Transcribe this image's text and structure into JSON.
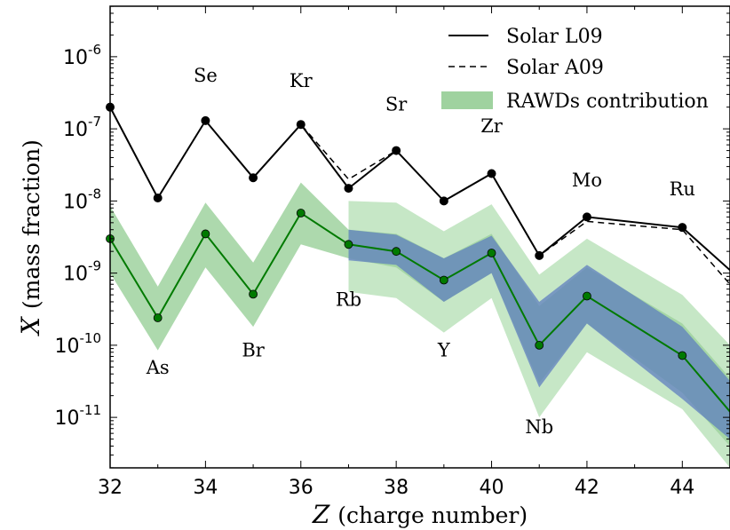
{
  "chart_data": {
    "type": "line",
    "xlabel_var": "Z",
    "xlabel_rest": "(charge number)",
    "ylabel_var": "X",
    "ylabel_rest": "(mass fraction)",
    "xlim": [
      32,
      45
    ],
    "ylim_log10": [
      -11.7,
      -5.3
    ],
    "y_scale": "log",
    "x_ticks": [
      32,
      34,
      36,
      38,
      40,
      42,
      44
    ],
    "y_ticks": [
      {
        "base": "10",
        "exp": "-6",
        "value": 1e-06
      },
      {
        "base": "10",
        "exp": "-7",
        "value": 1e-07
      },
      {
        "base": "10",
        "exp": "-8",
        "value": 1e-08
      },
      {
        "base": "10",
        "exp": "-9",
        "value": 1e-09
      },
      {
        "base": "10",
        "exp": "-10",
        "value": 1e-10
      },
      {
        "base": "10",
        "exp": "-11",
        "value": 1e-11
      }
    ],
    "legend": {
      "placement": "top-right",
      "entries": [
        "Solar L09",
        "Solar A09",
        "RAWDs contribution"
      ]
    },
    "colors": {
      "solar": "#000000",
      "rawds_line": "#007a00",
      "rawds_band": "#9fd29f",
      "outer_band": "#c6e7c6",
      "blue_band": "#5f7fbf"
    },
    "series": [
      {
        "name": "Solar L09",
        "x": [
          32,
          33,
          34,
          35,
          36,
          37,
          38,
          39,
          40,
          41,
          42,
          44,
          45
        ],
        "y": [
          2e-07,
          1.1e-08,
          1.3e-07,
          2.1e-08,
          1.15e-07,
          1.5e-08,
          5e-08,
          1e-08,
          2.4e-08,
          1.75e-09,
          6e-09,
          4.3e-09,
          1.1e-09
        ]
      },
      {
        "name": "Solar A09",
        "x": [
          32,
          33,
          34,
          35,
          36,
          37,
          38,
          39,
          40,
          41,
          42,
          44,
          45
        ],
        "y": [
          2e-07,
          1.1e-08,
          1.3e-07,
          2.1e-08,
          1.15e-07,
          2e-08,
          5e-08,
          1e-08,
          2.4e-08,
          1.75e-09,
          5.2e-09,
          4e-09,
          7e-10
        ]
      },
      {
        "name": "RAWDs contribution",
        "x": [
          32,
          33,
          34,
          35,
          36,
          37,
          38,
          39,
          40,
          41,
          42,
          44,
          45
        ],
        "y": [
          3e-09,
          2.4e-10,
          3.5e-09,
          5.1e-10,
          6.8e-09,
          2.5e-09,
          2e-09,
          8e-10,
          1.9e-09,
          1e-10,
          4.8e-10,
          7.2e-11,
          1.2e-11
        ],
        "band_low": [
          1e-09,
          8.5e-11,
          1.2e-09,
          1.8e-10,
          2.5e-09,
          1.6e-09,
          1.2e-09,
          4e-10,
          1e-09,
          3e-11,
          2e-10,
          2.2e-11,
          4e-12
        ],
        "band_high": [
          8.5e-09,
          6.5e-10,
          9.5e-09,
          1.4e-09,
          1.8e-08,
          4e-09,
          3.5e-09,
          1.6e-09,
          3.5e-09,
          3.5e-10,
          1.2e-09,
          2e-10,
          3.5e-11
        ]
      }
    ],
    "outer_band": {
      "x": [
        37,
        38,
        39,
        40,
        41,
        42,
        44,
        45
      ],
      "low": [
        5.5e-10,
        4.5e-10,
        1.5e-10,
        4.5e-10,
        1e-11,
        8e-11,
        1.3e-11,
        2e-12
      ],
      "high": [
        1e-08,
        9.5e-09,
        3.8e-09,
        9e-09,
        9.5e-10,
        3e-09,
        5e-10,
        1e-10
      ]
    },
    "blue_band": {
      "x": [
        37,
        38,
        39,
        40,
        41,
        42,
        44,
        45
      ],
      "low": [
        1.5e-09,
        1.3e-09,
        4e-10,
        1e-09,
        2.6e-11,
        2e-10,
        1.8e-11,
        5e-12
      ],
      "high": [
        4e-09,
        3.4e-09,
        1.6e-09,
        3.3e-09,
        4e-10,
        1.3e-09,
        1.8e-10,
        3.2e-11
      ]
    },
    "annotations": [
      {
        "text": "As",
        "x": 33,
        "y": 4e-11
      },
      {
        "text": "Se",
        "x": 34,
        "y": 4.5e-07
      },
      {
        "text": "Br",
        "x": 35,
        "y": 7e-11
      },
      {
        "text": "Kr",
        "x": 36,
        "y": 3.8e-07
      },
      {
        "text": "Rb",
        "x": 37,
        "y": 3.5e-10
      },
      {
        "text": "Sr",
        "x": 38,
        "y": 1.8e-07
      },
      {
        "text": "Y",
        "x": 39,
        "y": 7e-11
      },
      {
        "text": "Zr",
        "x": 40,
        "y": 9e-08
      },
      {
        "text": "Nb",
        "x": 41,
        "y": 6e-12
      },
      {
        "text": "Mo",
        "x": 42,
        "y": 1.6e-08
      },
      {
        "text": "Ru",
        "x": 44,
        "y": 1.2e-08
      }
    ]
  }
}
